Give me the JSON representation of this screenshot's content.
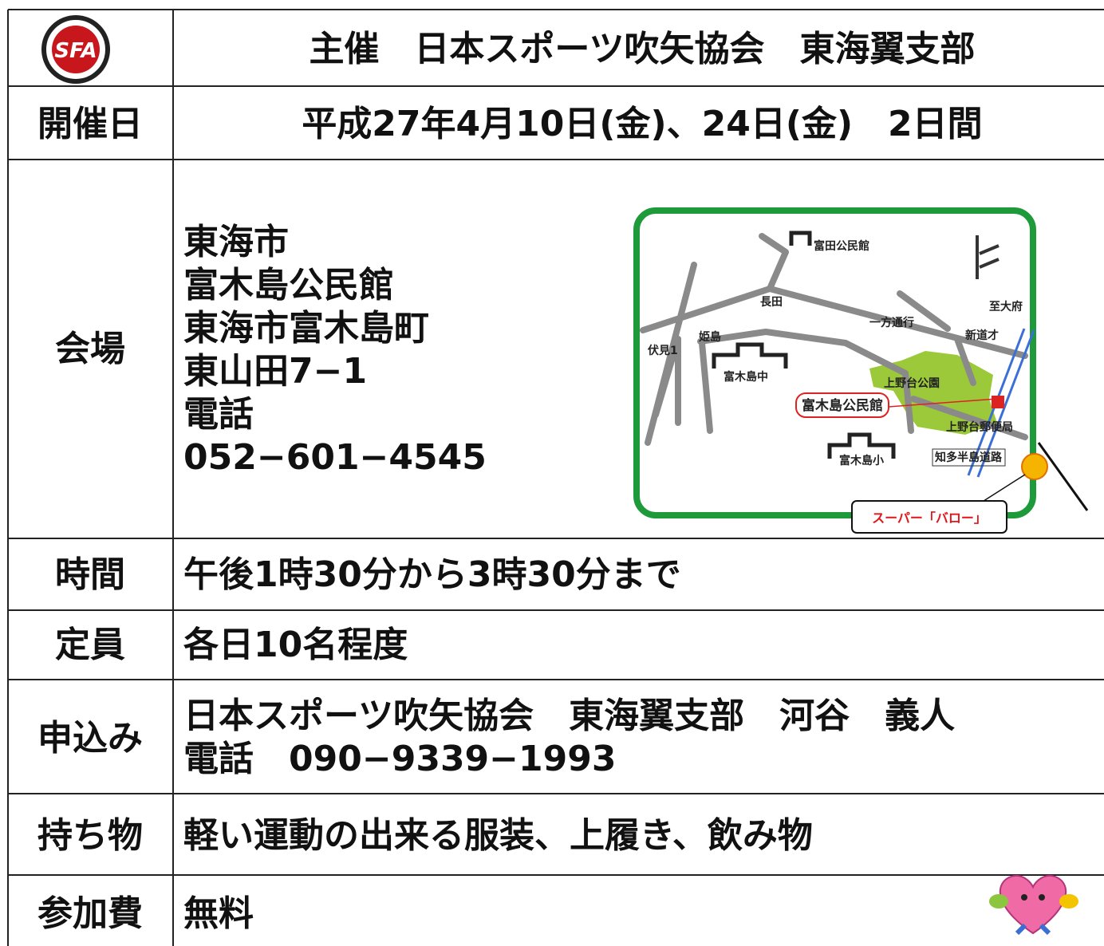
{
  "header": {
    "logo": "SFA",
    "title": "主催　日本スポーツ吹矢協会　東海翼支部"
  },
  "rows": [
    {
      "label": "開催日",
      "lines": [
        "平成27年4月10日(金)、24日(金)　2日間"
      ]
    },
    {
      "label": "会場",
      "lines": [
        "東海市",
        "富木島公民館",
        "東海市富木島町",
        "東山田7−1",
        "電話",
        "052−601−4545"
      ]
    },
    {
      "label": "時間",
      "lines": [
        "午後1時30分から3時30分まで"
      ]
    },
    {
      "label": "定員",
      "lines": [
        "各日10名程度"
      ]
    },
    {
      "label": "申込み",
      "lines": [
        "日本スポーツ吹矢協会　東海翼支部　河谷　義人",
        "電話　090−9339−1993"
      ]
    },
    {
      "label": "持ち物",
      "lines": [
        "軽い運動の出来る服装、上履き、飲み物"
      ]
    },
    {
      "label": "参加費",
      "lines": [
        "無料"
      ]
    }
  ],
  "map": {
    "labels": [
      "富田公民館",
      "長田",
      "一方通行",
      "至大府",
      "新道才",
      "伏見1",
      "姫島",
      "富木島中",
      "上野台公園",
      "上野台郵便局",
      "富木島小",
      "知多半島道路"
    ],
    "venue": "富木島公民館",
    "callout": "スーパー「バロー」"
  }
}
